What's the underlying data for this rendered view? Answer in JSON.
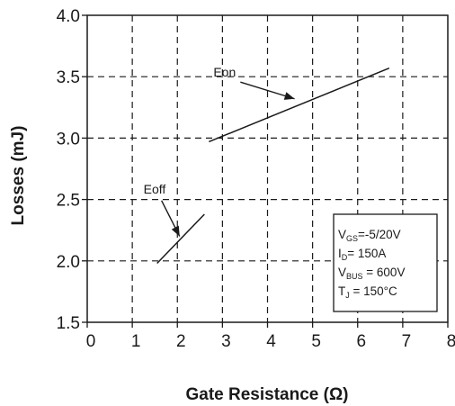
{
  "chart_data": {
    "type": "line",
    "title": "",
    "xlabel": "Gate Resistance (Ω)",
    "ylabel": "Losses (mJ)",
    "xlim": [
      0,
      8
    ],
    "ylim": [
      1.5,
      4.0
    ],
    "xticks": [
      "0",
      "1",
      "2",
      "3",
      "4",
      "5",
      "6",
      "7",
      "8"
    ],
    "yticks": [
      "1.5",
      "2.0",
      "2.5",
      "3.0",
      "3.5",
      "4.0"
    ],
    "grid": "dashed",
    "series": [
      {
        "name": "Eon",
        "x": [
          2.7,
          6.7
        ],
        "y": [
          2.97,
          3.57
        ]
      },
      {
        "name": "Eoff",
        "x": [
          1.55,
          2.6
        ],
        "y": [
          1.98,
          2.38
        ]
      }
    ],
    "annotations": [
      {
        "text": "Eon",
        "series": "Eon",
        "label_x": 2.8,
        "label_y": 3.5,
        "arrow_to_x": 4.6,
        "arrow_to_y": 3.32
      },
      {
        "text": "Eoff",
        "series": "Eoff",
        "label_x": 1.25,
        "label_y": 2.55,
        "arrow_to_x": 2.05,
        "arrow_to_y": 2.2
      }
    ],
    "conditions": {
      "line1_main": "V",
      "line1_sub": "GS",
      "line1_rest": "=-5/20V",
      "line2_main": "I",
      "line2_sub": "D",
      "line2_rest": "= 150A",
      "line3_main": "V",
      "line3_sub": "BUS",
      "line3_rest": " = 600V",
      "line4_main": "T",
      "line4_sub": "J",
      "line4_rest": " = 150°C"
    }
  }
}
